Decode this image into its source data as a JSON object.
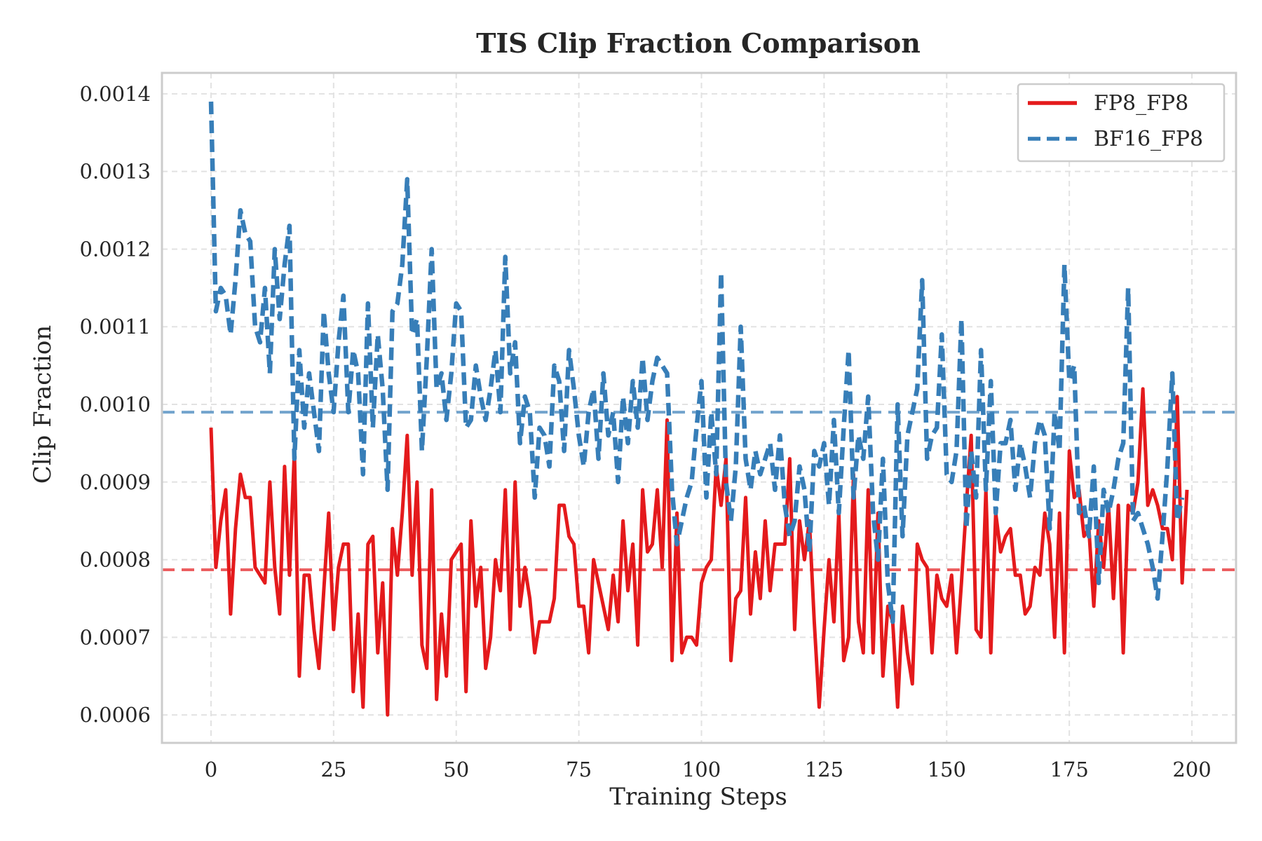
{
  "chart_data": {
    "type": "line",
    "title": "TIS Clip Fraction Comparison",
    "xlabel": "Training Steps",
    "ylabel": "Clip Fraction",
    "xlim": [
      -10,
      209
    ],
    "ylim": [
      0.000564,
      0.001427
    ],
    "xticks": [
      0,
      25,
      50,
      75,
      100,
      125,
      150,
      175,
      200
    ],
    "xtick_labels": [
      "0",
      "25",
      "50",
      "75",
      "100",
      "125",
      "150",
      "175",
      "200"
    ],
    "yticks": [
      0.0006,
      0.0007,
      0.0008,
      0.0009,
      0.001,
      0.0011,
      0.0012,
      0.0013,
      0.0014
    ],
    "ytick_labels": [
      "0.0006",
      "0.0007",
      "0.0008",
      "0.0009",
      "0.0010",
      "0.0011",
      "0.0012",
      "0.0013",
      "0.0014"
    ],
    "grid": true,
    "legend_position": "top-right",
    "series": [
      {
        "name": "FP8_FP8",
        "color": "#e41a1c",
        "style": "solid",
        "mean": 0.000787,
        "values": [
          0.00097,
          0.00079,
          0.00085,
          0.00089,
          0.00073,
          0.00084,
          0.00091,
          0.00088,
          0.00088,
          0.00079,
          0.00078,
          0.00077,
          0.0009,
          0.00079,
          0.00073,
          0.00092,
          0.00078,
          0.00094,
          0.00065,
          0.00078,
          0.00078,
          0.00071,
          0.00066,
          0.00076,
          0.00086,
          0.00071,
          0.00079,
          0.00082,
          0.00082,
          0.00063,
          0.00073,
          0.00061,
          0.00082,
          0.00083,
          0.00068,
          0.00077,
          0.0006,
          0.00084,
          0.00078,
          0.00086,
          0.00096,
          0.00078,
          0.0009,
          0.00069,
          0.00066,
          0.00089,
          0.00062,
          0.00073,
          0.00065,
          0.0008,
          0.00081,
          0.00082,
          0.00063,
          0.00085,
          0.00074,
          0.00079,
          0.00066,
          0.0007,
          0.0008,
          0.00076,
          0.00089,
          0.00071,
          0.0009,
          0.00074,
          0.00079,
          0.00075,
          0.00068,
          0.00072,
          0.00072,
          0.00072,
          0.00075,
          0.00087,
          0.00087,
          0.00083,
          0.00082,
          0.00074,
          0.00074,
          0.00068,
          0.0008,
          0.00077,
          0.00074,
          0.00071,
          0.00078,
          0.00072,
          0.00085,
          0.00076,
          0.00082,
          0.00069,
          0.00089,
          0.00081,
          0.00082,
          0.00089,
          0.00079,
          0.00098,
          0.00067,
          0.00086,
          0.00068,
          0.0007,
          0.0007,
          0.00069,
          0.00077,
          0.00079,
          0.0008,
          0.00092,
          0.00087,
          0.00093,
          0.00067,
          0.00075,
          0.00076,
          0.00088,
          0.00073,
          0.00081,
          0.00075,
          0.00085,
          0.00076,
          0.00082,
          0.00082,
          0.00082,
          0.00093,
          0.00071,
          0.00085,
          0.0008,
          0.00085,
          0.00072,
          0.00061,
          0.00071,
          0.0008,
          0.00072,
          0.00086,
          0.00067,
          0.0007,
          0.00091,
          0.00072,
          0.00068,
          0.00089,
          0.00068,
          0.00086,
          0.00065,
          0.00074,
          0.00072,
          0.00061,
          0.00074,
          0.00068,
          0.00064,
          0.00082,
          0.0008,
          0.00079,
          0.00068,
          0.00078,
          0.00075,
          0.00074,
          0.00078,
          0.00068,
          0.00077,
          0.00087,
          0.00096,
          0.00071,
          0.0007,
          0.00089,
          0.00068,
          0.00086,
          0.00081,
          0.00083,
          0.00084,
          0.00078,
          0.00078,
          0.00073,
          0.00074,
          0.00079,
          0.00078,
          0.00086,
          0.00082,
          0.0007,
          0.00086,
          0.00068,
          0.00094,
          0.00088,
          0.00089,
          0.00083,
          0.00084,
          0.00074,
          0.00085,
          0.00079,
          0.00087,
          0.00075,
          0.00087,
          0.00068,
          0.00087,
          0.00086,
          0.0009,
          0.00102,
          0.00087,
          0.00089,
          0.00087,
          0.00084,
          0.00084,
          0.0008,
          0.00101,
          0.00077,
          0.00089
        ]
      },
      {
        "name": "BF16_FP8",
        "color": "#377eb8",
        "style": "dashed",
        "mean": 0.00099,
        "values": [
          0.00139,
          0.00112,
          0.00115,
          0.00114,
          0.00109,
          0.00116,
          0.00125,
          0.00122,
          0.00121,
          0.0011,
          0.00108,
          0.00115,
          0.00104,
          0.0012,
          0.00111,
          0.00118,
          0.00123,
          0.00093,
          0.00107,
          0.00097,
          0.00104,
          0.00099,
          0.00094,
          0.00112,
          0.00104,
          0.00099,
          0.00108,
          0.00114,
          0.00099,
          0.00107,
          0.00104,
          0.00091,
          0.00113,
          0.00097,
          0.00109,
          0.00102,
          0.00089,
          0.00112,
          0.00113,
          0.00118,
          0.00129,
          0.00109,
          0.00111,
          0.00094,
          0.00106,
          0.0012,
          0.00102,
          0.00104,
          0.00098,
          0.00104,
          0.00113,
          0.00112,
          0.00097,
          0.00098,
          0.00105,
          0.00101,
          0.00098,
          0.00102,
          0.00107,
          0.00099,
          0.00119,
          0.00104,
          0.00108,
          0.00095,
          0.00101,
          0.00099,
          0.00088,
          0.00097,
          0.00096,
          0.00092,
          0.00105,
          0.00103,
          0.00094,
          0.00107,
          0.00102,
          0.00096,
          0.00092,
          0.00099,
          0.00102,
          0.00093,
          0.00104,
          0.00096,
          0.00099,
          0.0009,
          0.00101,
          0.00095,
          0.00103,
          0.00097,
          0.00106,
          0.00098,
          0.00103,
          0.00106,
          0.00105,
          0.00104,
          0.00089,
          0.00082,
          0.00085,
          0.00088,
          0.0009,
          0.00097,
          0.00103,
          0.00088,
          0.00099,
          0.00091,
          0.00117,
          0.0009,
          0.00085,
          0.00092,
          0.0011,
          0.00093,
          0.00089,
          0.00094,
          0.00091,
          0.00093,
          0.00095,
          0.00089,
          0.00096,
          0.00087,
          0.00083,
          0.00085,
          0.00092,
          0.00089,
          0.00081,
          0.00094,
          0.00092,
          0.00095,
          0.00087,
          0.00098,
          0.00086,
          0.00097,
          0.00107,
          0.00088,
          0.00096,
          0.00093,
          0.00101,
          0.00086,
          0.0008,
          0.00093,
          0.00077,
          0.00072,
          0.001,
          0.00083,
          0.00096,
          0.00099,
          0.00102,
          0.00116,
          0.00093,
          0.00096,
          0.00097,
          0.00109,
          0.00091,
          0.0009,
          0.00094,
          0.00111,
          0.00084,
          0.00094,
          0.00088,
          0.00107,
          0.00089,
          0.00103,
          0.00086,
          0.00095,
          0.00095,
          0.00098,
          0.00089,
          0.00095,
          0.00092,
          0.00088,
          0.00095,
          0.00098,
          0.00096,
          0.00084,
          0.00099,
          0.00094,
          0.00118,
          0.00103,
          0.00105,
          0.00086,
          0.00087,
          0.00083,
          0.00092,
          0.00077,
          0.00089,
          0.00086,
          0.00089,
          0.00093,
          0.00095,
          0.00115,
          0.00085,
          0.00086,
          0.00084,
          0.00082,
          0.00079,
          0.00075,
          0.00083,
          0.00092,
          0.00104,
          0.00085,
          0.00088
        ]
      }
    ]
  }
}
